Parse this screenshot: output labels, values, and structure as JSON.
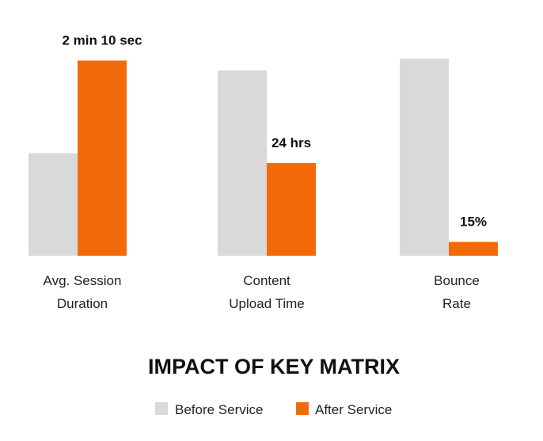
{
  "chart_data": {
    "type": "bar",
    "title": "IMPACT OF KEY MATRIX",
    "categories": [
      [
        "Avg. Session",
        "Duration"
      ],
      [
        "Content",
        "Upload Time"
      ],
      [
        "Bounce",
        "Rate"
      ]
    ],
    "series": [
      {
        "name": "Before Service",
        "color": "#d9d9d9",
        "relative_heights": [
          0.52,
          0.94,
          1.0
        ]
      },
      {
        "name": "After Service",
        "color": "#f26a0a",
        "relative_heights": [
          0.99,
          0.47,
          0.07
        ],
        "data_labels": [
          "2 min 10 sec",
          "24 hrs",
          "15%"
        ]
      }
    ],
    "legend_position": "bottom-center",
    "grid": false,
    "value_axis": "none (bars are per-category, no shared scale shown)"
  }
}
